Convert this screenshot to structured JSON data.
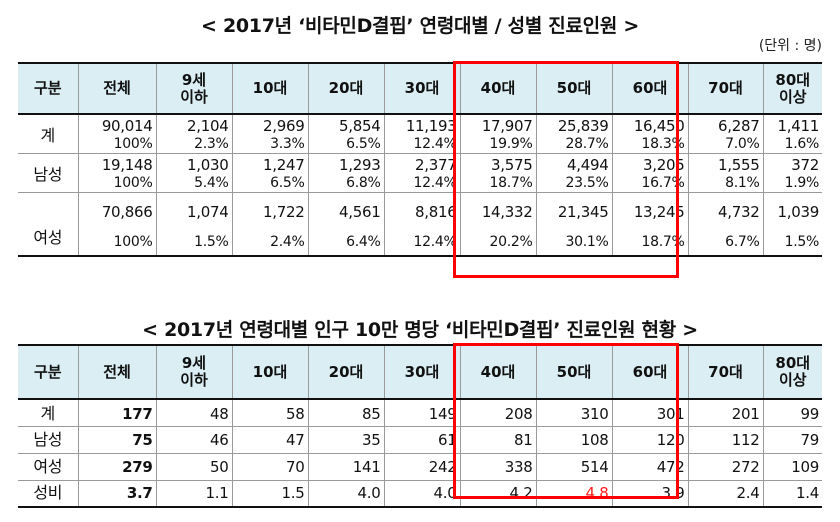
{
  "title1": "< 2017년 ‘비타민D결핍’ 연령대별 / 성별 진료인원 >",
  "unit": "(단위 :  명)",
  "title2": "< 2017년 연령대별 인구 10만 명당 ‘비타민D결핍’ 진료인원 현황 >",
  "headers": [
    "구분",
    "전체",
    "9세\n이하",
    "10대",
    "20대",
    "30대",
    "40대",
    "50대",
    "60대",
    "70대",
    "80대\n이상"
  ],
  "table1": [
    {
      "label": "계",
      "counts": [
        "90,014",
        "2,104",
        "2,969",
        "5,854",
        "11,193",
        "17,907",
        "25,839",
        "16,450",
        "6,287",
        "1,411"
      ],
      "pcts": [
        "100%",
        "2.3%",
        "3.3%",
        "6.5%",
        "12.4%",
        "19.9%",
        "28.7%",
        "18.3%",
        "7.0%",
        "1.6%"
      ]
    },
    {
      "label": "남성",
      "counts": [
        "19,148",
        "1,030",
        "1,247",
        "1,293",
        "2,377",
        "3,575",
        "4,494",
        "3,205",
        "1,555",
        "372"
      ],
      "pcts": [
        "100%",
        "5.4%",
        "6.5%",
        "6.8%",
        "12.4%",
        "18.7%",
        "23.5%",
        "16.7%",
        "8.1%",
        "1.9%"
      ]
    },
    {
      "label": "여성",
      "counts": [
        "70,866",
        "1,074",
        "1,722",
        "4,561",
        "8,816",
        "14,332",
        "21,345",
        "13,245",
        "4,732",
        "1,039"
      ],
      "pcts": [
        "100%",
        "1.5%",
        "2.4%",
        "6.4%",
        "12.4%",
        "20.2%",
        "30.1%",
        "18.7%",
        "6.7%",
        "1.5%"
      ]
    }
  ],
  "table2": [
    {
      "label": "계",
      "values": [
        "177",
        "48",
        "58",
        "85",
        "149",
        "208",
        "310",
        "301",
        "201",
        "99"
      ]
    },
    {
      "label": "남성",
      "values": [
        "75",
        "46",
        "47",
        "35",
        "61",
        "81",
        "108",
        "120",
        "112",
        "79"
      ]
    },
    {
      "label": "여성",
      "values": [
        "279",
        "50",
        "70",
        "141",
        "242",
        "338",
        "514",
        "472",
        "272",
        "109"
      ]
    },
    {
      "label": "성비",
      "values": [
        "3.7",
        "1.1",
        "1.5",
        "4.0",
        "4.0",
        "4.2",
        "4.8",
        "3.9",
        "2.4",
        "1.4"
      ]
    }
  ],
  "colors": {
    "header_bg": "#dbeef4",
    "highlight": "#ff0000",
    "accent_text": "#ff2020"
  }
}
